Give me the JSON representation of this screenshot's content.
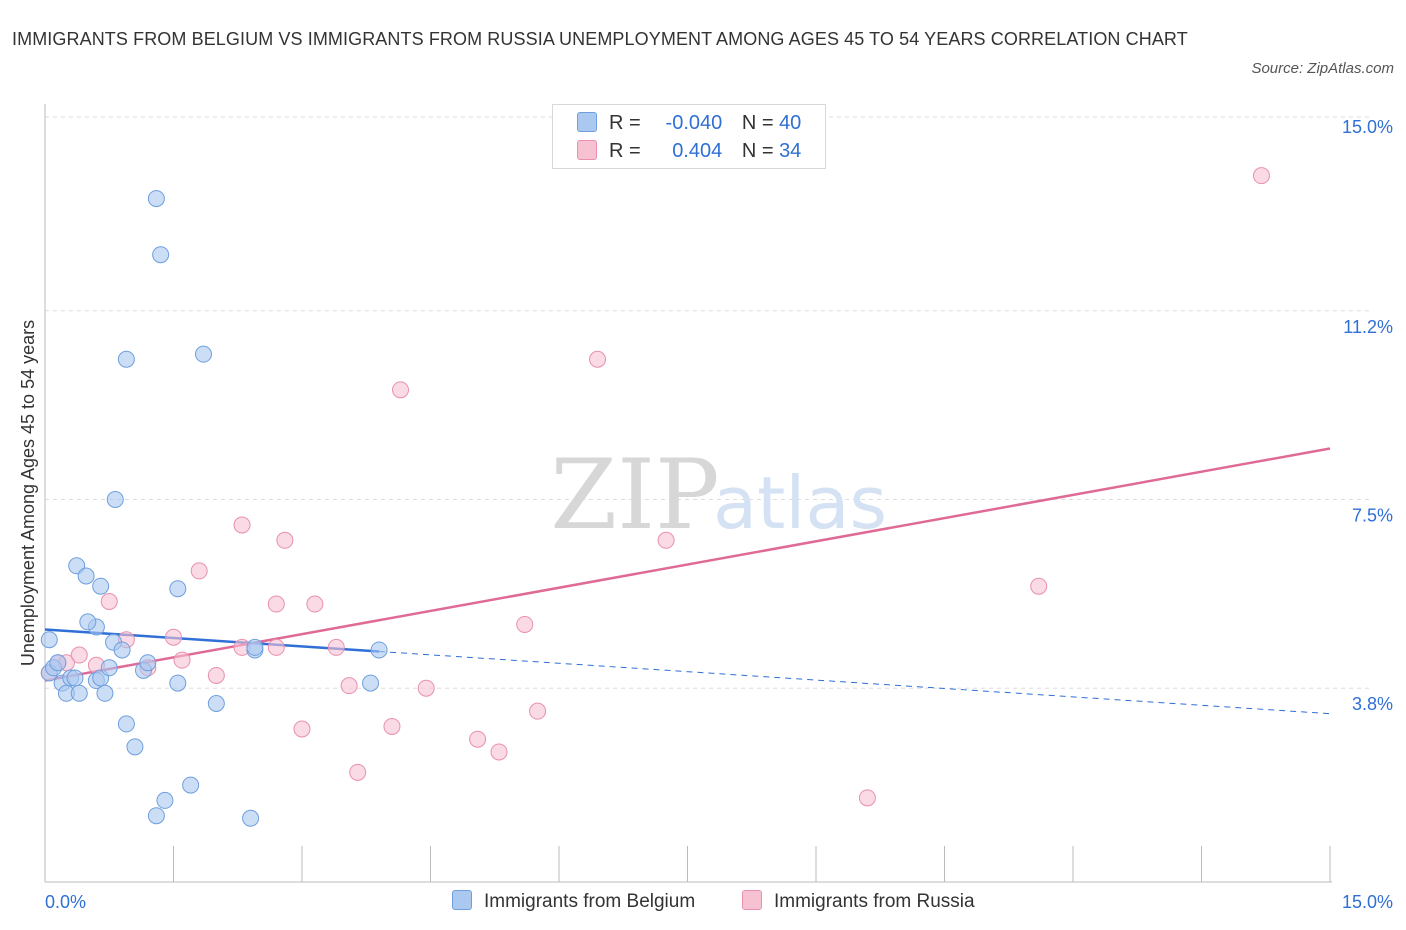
{
  "title": "IMMIGRANTS FROM BELGIUM VS IMMIGRANTS FROM RUSSIA UNEMPLOYMENT AMONG AGES 45 TO 54 YEARS CORRELATION CHART",
  "source": "Source: ZipAtlas.com",
  "watermark": {
    "zip": "ZIP",
    "atlas": "atlas"
  },
  "colors": {
    "belgium_fill": "#aac8f0",
    "belgium_stroke": "#6e9fde",
    "belgium_line": "#2f6fd6",
    "russia_fill": "#f6c2d2",
    "russia_stroke": "#e890ad",
    "russia_line": "#e06a96",
    "axis_label": "#2f6fd6",
    "grid": "#dddddd"
  },
  "legend": {
    "belgium": {
      "r_label": "R =",
      "r_value": "-0.040",
      "n_label": "N =",
      "n_value": "40"
    },
    "russia": {
      "r_label": "R =",
      "r_value": "0.404",
      "n_label": "N =",
      "n_value": "34"
    }
  },
  "chart_data": {
    "type": "scatter",
    "title": "IMMIGRANTS FROM BELGIUM VS IMMIGRANTS FROM RUSSIA UNEMPLOYMENT AMONG AGES 45 TO 54 YEARS CORRELATION CHART",
    "xlabel": "",
    "ylabel": "Unemployment Among Ages 45 to 54 years",
    "xlim": [
      0,
      15
    ],
    "ylim": [
      0,
      15
    ],
    "y_ticks": [
      {
        "value": 3.8,
        "label": "3.8%"
      },
      {
        "value": 7.5,
        "label": "7.5%"
      },
      {
        "value": 11.2,
        "label": "11.2%"
      },
      {
        "value": 15.0,
        "label": "15.0%"
      }
    ],
    "x_tick_labels": {
      "left": "0.0%",
      "right": "15.0%"
    },
    "legend_position": "top-center",
    "series": [
      {
        "name": "Immigrants from Belgium",
        "points": [
          [
            0.05,
            4.75
          ],
          [
            0.05,
            4.1
          ],
          [
            0.1,
            4.2
          ],
          [
            0.15,
            4.3
          ],
          [
            0.2,
            3.9
          ],
          [
            0.25,
            3.7
          ],
          [
            0.3,
            4.0
          ],
          [
            0.35,
            4.0
          ],
          [
            0.4,
            3.7
          ],
          [
            0.6,
            3.95
          ],
          [
            0.65,
            4.0
          ],
          [
            0.7,
            3.7
          ],
          [
            0.75,
            4.2
          ],
          [
            0.8,
            4.7
          ],
          [
            0.9,
            4.55
          ],
          [
            0.95,
            3.1
          ],
          [
            1.05,
            2.65
          ],
          [
            1.15,
            4.15
          ],
          [
            1.2,
            4.3
          ],
          [
            1.3,
            1.3
          ],
          [
            1.4,
            1.6
          ],
          [
            1.55,
            3.9
          ],
          [
            1.7,
            1.9
          ],
          [
            2.0,
            3.5
          ],
          [
            2.4,
            1.25
          ],
          [
            0.37,
            6.2
          ],
          [
            0.48,
            6.0
          ],
          [
            0.65,
            5.8
          ],
          [
            0.6,
            5.0
          ],
          [
            0.5,
            5.1
          ],
          [
            0.82,
            7.5
          ],
          [
            1.55,
            5.75
          ],
          [
            0.95,
            10.25
          ],
          [
            1.85,
            10.35
          ],
          [
            1.35,
            12.3
          ],
          [
            1.3,
            13.4
          ],
          [
            3.8,
            3.9
          ],
          [
            3.9,
            4.55
          ],
          [
            2.45,
            4.55
          ],
          [
            2.45,
            4.6
          ]
        ],
        "trend": {
          "x": [
            0,
            3.9
          ],
          "y": [
            4.95,
            4.52
          ],
          "dashed_extension": {
            "x": [
              3.9,
              15
            ],
            "y": [
              4.52,
              3.3
            ]
          }
        }
      },
      {
        "name": "Immigrants from Russia",
        "points": [
          [
            0.05,
            4.1
          ],
          [
            0.15,
            4.3
          ],
          [
            0.25,
            4.3
          ],
          [
            0.4,
            4.45
          ],
          [
            0.6,
            4.25
          ],
          [
            0.75,
            5.5
          ],
          [
            0.95,
            4.75
          ],
          [
            1.2,
            4.2
          ],
          [
            1.5,
            4.8
          ],
          [
            1.6,
            4.35
          ],
          [
            1.8,
            6.1
          ],
          [
            2.0,
            4.05
          ],
          [
            2.3,
            4.6
          ],
          [
            2.3,
            7.0
          ],
          [
            2.7,
            5.45
          ],
          [
            2.8,
            6.7
          ],
          [
            3.0,
            3.0
          ],
          [
            3.15,
            5.45
          ],
          [
            3.4,
            4.6
          ],
          [
            3.55,
            3.85
          ],
          [
            3.65,
            2.15
          ],
          [
            4.05,
            3.05
          ],
          [
            4.15,
            9.65
          ],
          [
            4.45,
            3.8
          ],
          [
            5.05,
            2.8
          ],
          [
            5.3,
            2.55
          ],
          [
            5.6,
            5.05
          ],
          [
            5.75,
            3.35
          ],
          [
            6.45,
            10.25
          ],
          [
            7.25,
            6.7
          ],
          [
            9.6,
            1.65
          ],
          [
            11.6,
            5.8
          ],
          [
            14.2,
            13.85
          ],
          [
            2.7,
            4.6
          ]
        ],
        "trend": {
          "x": [
            0,
            15
          ],
          "y": [
            3.95,
            8.5
          ]
        }
      }
    ]
  }
}
